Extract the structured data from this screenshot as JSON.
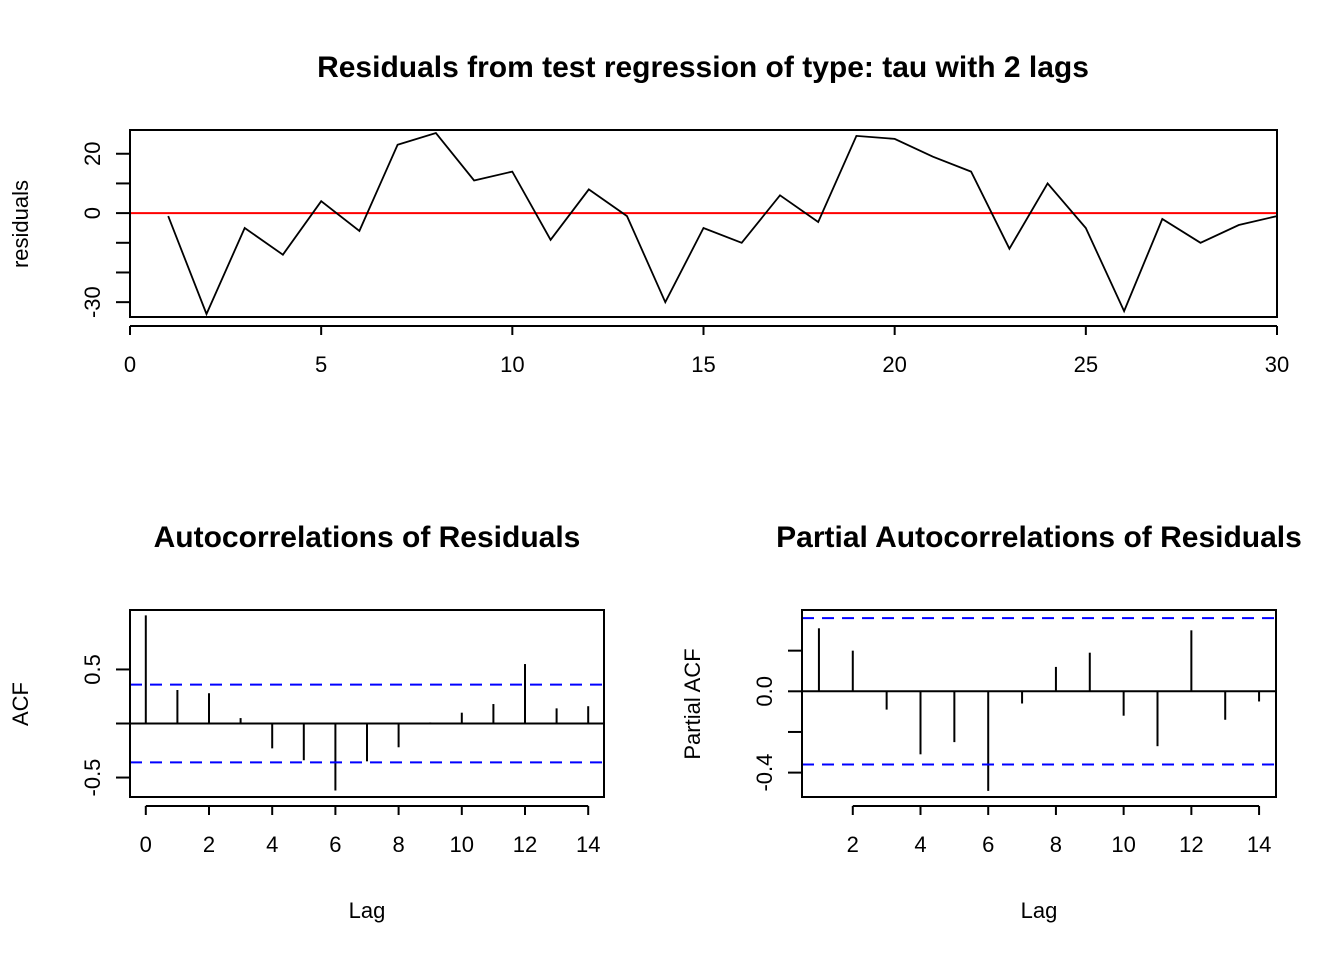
{
  "chart_data": [
    {
      "type": "line",
      "title": "Residuals from test regression of type: tau  with 2 lags",
      "xlabel": "",
      "ylabel": "residuals",
      "xlim": [
        0,
        30
      ],
      "ylim": [
        -35,
        28
      ],
      "x_ticks": [
        0,
        5,
        10,
        15,
        20,
        25,
        30
      ],
      "y_ticks": [
        -30,
        -20,
        -10,
        0,
        10,
        20
      ],
      "y_tick_labels": [
        {
          "v": -30,
          "t": "-30"
        },
        {
          "v": 0,
          "t": "0"
        },
        {
          "v": 20,
          "t": "20"
        }
      ],
      "reference_line": {
        "y": 0,
        "color": "#ff0000"
      },
      "series": [
        {
          "color": "#000000",
          "x": [
            1,
            2,
            3,
            4,
            5,
            6,
            7,
            8,
            9,
            10,
            11,
            12,
            13,
            14,
            15,
            16,
            17,
            18,
            19,
            20,
            21,
            22,
            23,
            24,
            25,
            26,
            27,
            28,
            29,
            30
          ],
          "values": [
            -1,
            -34,
            -5,
            -14,
            4,
            -6,
            23,
            27,
            11,
            14,
            -9,
            8,
            -1,
            -30,
            -5,
            -10,
            6,
            -3,
            26,
            25,
            19,
            14,
            -12,
            10,
            -5,
            -33,
            -2,
            -10,
            -4,
            -1
          ]
        }
      ],
      "grid": false
    },
    {
      "type": "bar",
      "title": "Autocorrelations of Residuals",
      "xlabel": "Lag",
      "ylabel": "ACF",
      "xlim": [
        -0.5,
        14.5
      ],
      "ylim": [
        -0.68,
        1.05
      ],
      "x_ticks": [
        0,
        2,
        4,
        6,
        8,
        10,
        12,
        14
      ],
      "y_ticks": [
        -0.5,
        0,
        0.5
      ],
      "y_tick_labels": [
        {
          "v": -0.5,
          "t": "-0.5"
        },
        {
          "v": 0.5,
          "t": "0.5"
        }
      ],
      "zero_line": true,
      "confidence_band": {
        "value": 0.36,
        "color": "#0000ff"
      },
      "lags": [
        0,
        1,
        2,
        3,
        4,
        5,
        6,
        7,
        8,
        9,
        10,
        11,
        12,
        13,
        14
      ],
      "values": [
        1.0,
        0.31,
        0.28,
        0.05,
        -0.23,
        -0.34,
        -0.62,
        -0.35,
        -0.22,
        0.01,
        0.1,
        0.18,
        0.55,
        0.14,
        0.16
      ],
      "grid": false
    },
    {
      "type": "bar",
      "title": "Partial Autocorrelations of Residuals",
      "xlabel": "Lag",
      "ylabel": "Partial ACF",
      "xlim": [
        0.5,
        14.5
      ],
      "ylim": [
        -0.52,
        0.4
      ],
      "x_ticks": [
        2,
        4,
        6,
        8,
        10,
        12,
        14
      ],
      "y_ticks": [
        -0.4,
        -0.2,
        0,
        0.2
      ],
      "y_tick_labels": [
        {
          "v": -0.4,
          "t": "-0.4"
        },
        {
          "v": 0,
          "t": "0.0"
        }
      ],
      "zero_line": true,
      "confidence_band": {
        "value": 0.36,
        "color": "#0000ff"
      },
      "lags": [
        1,
        2,
        3,
        4,
        5,
        6,
        7,
        8,
        9,
        10,
        11,
        12,
        13,
        14
      ],
      "values": [
        0.31,
        0.2,
        -0.09,
        -0.31,
        -0.25,
        -0.49,
        -0.06,
        0.12,
        0.19,
        -0.12,
        -0.27,
        0.3,
        -0.14,
        -0.05
      ],
      "grid": false
    }
  ]
}
